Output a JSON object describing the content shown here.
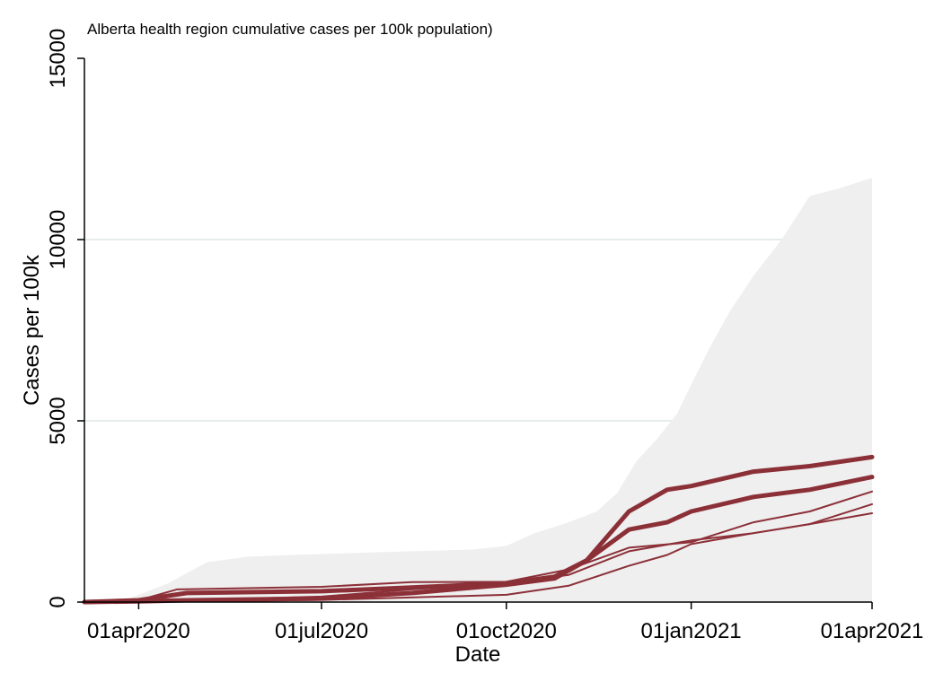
{
  "chart_data": {
    "type": "line",
    "title": "Alberta health region cumulative cases per 100k population)",
    "xlabel": "Date",
    "ylabel": "Cases per 100k",
    "xlim": [
      "2020-03-05",
      "2021-04-01"
    ],
    "ylim": [
      0,
      15000
    ],
    "xticks": [
      {
        "date": "2020-04-01",
        "label": "01apr2020"
      },
      {
        "date": "2020-07-01",
        "label": "01jul2020"
      },
      {
        "date": "2020-10-01",
        "label": "01oct2020"
      },
      {
        "date": "2021-01-01",
        "label": "01jan2021"
      },
      {
        "date": "2021-04-01",
        "label": "01apr2021"
      }
    ],
    "yticks": [
      {
        "value": 0,
        "label": "0"
      },
      {
        "value": 5000,
        "label": "5000"
      },
      {
        "value": 10000,
        "label": "10000"
      },
      {
        "value": 15000,
        "label": "15000"
      }
    ],
    "grid": "horizontal",
    "legend": "none",
    "colors": {
      "series": "#8c3038",
      "band": "#efefef",
      "grid": "#e6ecec",
      "axis": "#000000"
    },
    "band": {
      "x": [
        "2020-03-05",
        "2020-03-25",
        "2020-04-15",
        "2020-05-05",
        "2020-05-25",
        "2020-06-15",
        "2020-07-15",
        "2020-08-15",
        "2020-09-15",
        "2020-10-01",
        "2020-10-15",
        "2020-11-01",
        "2020-11-15",
        "2020-11-25",
        "2020-12-05",
        "2020-12-15",
        "2020-12-25",
        "2021-01-01",
        "2021-01-10",
        "2021-01-20",
        "2021-02-01",
        "2021-02-15",
        "2021-03-01",
        "2021-03-15",
        "2021-04-01"
      ],
      "upper": [
        0,
        50,
        500,
        1100,
        1250,
        1300,
        1350,
        1400,
        1450,
        1550,
        1900,
        2200,
        2500,
        3000,
        3900,
        4500,
        5200,
        6000,
        7000,
        8000,
        9000,
        10000,
        11200,
        11400,
        11700
      ],
      "lower": [
        0,
        0,
        0,
        0,
        0,
        0,
        0,
        0,
        0,
        0,
        0,
        0,
        0,
        0,
        0,
        0,
        0,
        0,
        0,
        0,
        0,
        0,
        0,
        0,
        0
      ]
    },
    "series": [
      {
        "values_x": [
          "2020-03-05",
          "2020-04-01",
          "2020-04-25",
          "2020-07-01",
          "2020-08-15",
          "2020-10-01",
          "2020-10-25",
          "2020-11-10",
          "2020-12-01",
          "2020-12-20",
          "2021-01-01",
          "2021-02-01",
          "2021-03-01",
          "2021-04-01"
        ],
        "values": [
          0,
          50,
          250,
          300,
          400,
          520,
          700,
          1150,
          2500,
          3100,
          3200,
          3600,
          3750,
          4000
        ],
        "weight": "thick"
      },
      {
        "values_x": [
          "2020-03-05",
          "2020-04-01",
          "2020-04-25",
          "2020-07-01",
          "2020-08-15",
          "2020-10-01",
          "2020-10-25",
          "2020-11-10",
          "2020-12-01",
          "2020-12-20",
          "2021-01-01",
          "2021-02-01",
          "2021-03-01",
          "2021-04-01"
        ],
        "values": [
          0,
          20,
          50,
          100,
          250,
          480,
          650,
          1150,
          2000,
          2200,
          2500,
          2900,
          3100,
          3450
        ],
        "weight": "thick"
      },
      {
        "values_x": [
          "2020-03-05",
          "2020-04-01",
          "2020-04-20",
          "2020-07-01",
          "2020-08-15",
          "2020-10-01",
          "2020-11-01",
          "2020-12-01",
          "2021-01-01",
          "2021-02-01",
          "2021-03-01",
          "2021-04-01"
        ],
        "values": [
          0,
          50,
          350,
          420,
          550,
          560,
          900,
          1500,
          1650,
          2200,
          2500,
          3050
        ],
        "weight": "thin"
      },
      {
        "values_x": [
          "2020-03-05",
          "2020-04-01",
          "2020-07-01",
          "2020-08-15",
          "2020-10-01",
          "2020-11-01",
          "2020-12-01",
          "2021-01-01",
          "2021-02-01",
          "2021-03-01",
          "2021-04-01"
        ],
        "values": [
          0,
          10,
          150,
          350,
          520,
          750,
          1400,
          1700,
          1900,
          2150,
          2700
        ],
        "weight": "thin"
      },
      {
        "values_x": [
          "2020-03-05",
          "2020-04-01",
          "2020-07-01",
          "2020-10-01",
          "2020-11-01",
          "2020-12-01",
          "2020-12-20",
          "2021-01-01",
          "2021-02-01",
          "2021-03-01",
          "2021-04-01"
        ],
        "values": [
          0,
          5,
          60,
          200,
          450,
          1000,
          1300,
          1600,
          1900,
          2150,
          2450
        ],
        "weight": "thin"
      }
    ]
  }
}
